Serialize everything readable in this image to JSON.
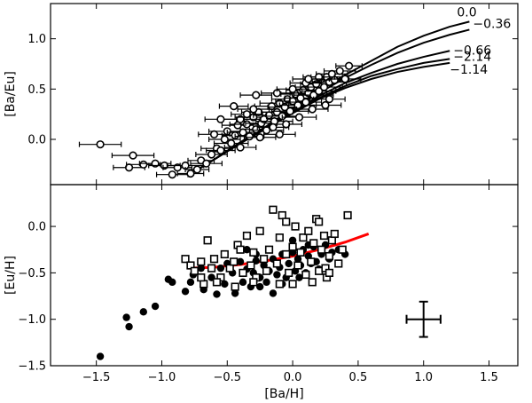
{
  "chart_data": [
    {
      "type": "scatter",
      "panel": "top",
      "xlabel": "",
      "ylabel": "[Ba/Eu]",
      "xlim": [
        -1.85,
        1.72
      ],
      "ylim": [
        -0.45,
        1.35
      ],
      "xticks": [
        -1.5,
        -1.0,
        -0.5,
        0.0,
        0.5,
        1.0,
        1.5
      ],
      "yticks": [
        0.0,
        0.5,
        1.0
      ],
      "ytick_labels": [
        "0.0",
        "0.5",
        "1.0"
      ],
      "series": [
        {
          "name": "stars",
          "marker": "open-circle",
          "points": [
            [
              -1.47,
              -0.05,
              0.16
            ],
            [
              -1.25,
              -0.28,
              0.12
            ],
            [
              -1.22,
              -0.16,
              0.16
            ],
            [
              -1.14,
              -0.25,
              0.13
            ],
            [
              -1.05,
              -0.24,
              0.12
            ],
            [
              -0.98,
              -0.26,
              0.12
            ],
            [
              -0.92,
              -0.35,
              0.12
            ],
            [
              -0.88,
              -0.28,
              0.11
            ],
            [
              -0.82,
              -0.26,
              0.14
            ],
            [
              -0.78,
              -0.34,
              0.1
            ],
            [
              -0.73,
              -0.3,
              0.09
            ],
            [
              -0.7,
              -0.21,
              0.1
            ],
            [
              -0.66,
              -0.24,
              0.12
            ],
            [
              -0.62,
              -0.15,
              0.12
            ],
            [
              -0.58,
              -0.09,
              0.12
            ],
            [
              -0.55,
              -0.11,
              0.11
            ],
            [
              -0.52,
              0.0,
              0.12
            ],
            [
              -0.5,
              0.08,
              0.14
            ],
            [
              -0.47,
              -0.04,
              0.13
            ],
            [
              -0.44,
              0.04,
              0.1
            ],
            [
              -0.42,
              0.14,
              0.12
            ],
            [
              -0.4,
              0.2,
              0.15
            ],
            [
              -0.38,
              0.07,
              0.12
            ],
            [
              -0.35,
              0.15,
              0.13
            ],
            [
              -0.33,
              0.03,
              0.11
            ],
            [
              -0.3,
              0.22,
              0.14
            ],
            [
              -0.28,
              0.1,
              0.12
            ],
            [
              -0.26,
              0.27,
              0.13
            ],
            [
              -0.24,
              0.16,
              0.12
            ],
            [
              -0.22,
              0.2,
              0.15
            ],
            [
              -0.2,
              0.09,
              0.13
            ],
            [
              -0.18,
              0.24,
              0.12
            ],
            [
              -0.16,
              0.33,
              0.13
            ],
            [
              -0.14,
              0.18,
              0.14
            ],
            [
              -0.12,
              0.27,
              0.12
            ],
            [
              -0.1,
              0.36,
              0.15
            ],
            [
              -0.08,
              0.23,
              0.12
            ],
            [
              -0.06,
              0.32,
              0.13
            ],
            [
              -0.04,
              0.4,
              0.12
            ],
            [
              -0.02,
              0.28,
              0.14
            ],
            [
              0.0,
              0.38,
              0.13
            ],
            [
              0.02,
              0.45,
              0.11
            ],
            [
              0.04,
              0.34,
              0.14
            ],
            [
              0.06,
              0.41,
              0.12
            ],
            [
              0.08,
              0.49,
              0.13
            ],
            [
              0.1,
              0.37,
              0.12
            ],
            [
              0.12,
              0.46,
              0.14
            ],
            [
              0.14,
              0.52,
              0.12
            ],
            [
              0.16,
              0.44,
              0.15
            ],
            [
              0.18,
              0.55,
              0.12
            ],
            [
              0.2,
              0.48,
              0.13
            ],
            [
              0.22,
              0.6,
              0.12
            ],
            [
              0.24,
              0.52,
              0.14
            ],
            [
              0.26,
              0.62,
              0.12
            ],
            [
              0.28,
              0.57,
              0.13
            ],
            [
              0.3,
              0.65,
              0.12
            ],
            [
              0.32,
              0.59,
              0.11
            ],
            [
              0.36,
              0.68,
              0.12
            ],
            [
              0.4,
              0.6,
              0.12
            ],
            [
              0.43,
              0.73,
              0.1
            ],
            [
              -0.28,
              0.44,
              0.12
            ],
            [
              -0.12,
              0.46,
              0.12
            ],
            [
              0.1,
              0.56,
              0.12
            ],
            [
              0.2,
              0.62,
              0.12
            ],
            [
              -0.35,
              0.25,
              0.12
            ],
            [
              -0.45,
              0.33,
              0.11
            ],
            [
              -0.05,
              0.15,
              0.12
            ],
            [
              0.05,
              0.22,
              0.13
            ],
            [
              0.15,
              0.3,
              0.12
            ],
            [
              0.28,
              0.4,
              0.12
            ],
            [
              -0.1,
              0.05,
              0.12
            ],
            [
              -0.55,
              0.2,
              0.12
            ],
            [
              -0.25,
              0.02,
              0.12
            ],
            [
              -0.15,
              0.12,
              0.12
            ],
            [
              0.0,
              0.5,
              0.12
            ],
            [
              0.25,
              0.34,
              0.12
            ],
            [
              -0.4,
              -0.08,
              0.12
            ],
            [
              -0.3,
              0.3,
              0.12
            ],
            [
              0.12,
              0.6,
              0.12
            ],
            [
              -0.6,
              0.05,
              0.12
            ]
          ]
        }
      ],
      "curves": [
        {
          "label": "0.0",
          "x": [
            -0.8,
            -0.6,
            -0.4,
            -0.2,
            0.0,
            0.2,
            0.4,
            0.6,
            0.8,
            1.0,
            1.2,
            1.35
          ],
          "y": [
            -0.36,
            -0.2,
            -0.03,
            0.13,
            0.31,
            0.48,
            0.64,
            0.78,
            0.92,
            1.03,
            1.12,
            1.17
          ]
        },
        {
          "label": "−0.36",
          "x": [
            -0.8,
            -0.6,
            -0.4,
            -0.2,
            0.0,
            0.2,
            0.4,
            0.6,
            0.8,
            1.0,
            1.2,
            1.35
          ],
          "y": [
            -0.36,
            -0.2,
            -0.03,
            0.13,
            0.3,
            0.46,
            0.61,
            0.74,
            0.86,
            0.96,
            1.04,
            1.09
          ]
        },
        {
          "label": "−0.66",
          "x": [
            -0.8,
            -0.6,
            -0.4,
            -0.2,
            0.0,
            0.2,
            0.4,
            0.6,
            0.8,
            1.0,
            1.2
          ],
          "y": [
            -0.36,
            -0.2,
            -0.03,
            0.12,
            0.28,
            0.43,
            0.56,
            0.66,
            0.75,
            0.82,
            0.88
          ]
        },
        {
          "label": "−2.14",
          "x": [
            -0.8,
            -0.6,
            -0.4,
            -0.2,
            0.0,
            0.2,
            0.4,
            0.6,
            0.8,
            1.0,
            1.2
          ],
          "y": [
            -0.36,
            -0.2,
            -0.04,
            0.11,
            0.27,
            0.41,
            0.53,
            0.63,
            0.7,
            0.76,
            0.8
          ]
        },
        {
          "label": "−1.14",
          "x": [
            -0.8,
            -0.6,
            -0.4,
            -0.2,
            0.0,
            0.2,
            0.4,
            0.6,
            0.8,
            1.0,
            1.2
          ],
          "y": [
            -0.36,
            -0.2,
            -0.04,
            0.11,
            0.26,
            0.4,
            0.51,
            0.6,
            0.67,
            0.72,
            0.76
          ]
        }
      ]
    },
    {
      "type": "scatter",
      "panel": "bottom",
      "xlabel": "[Ba/H]",
      "ylabel": "[Eu/H]",
      "xlim": [
        -1.85,
        1.72
      ],
      "ylim": [
        -1.5,
        0.45
      ],
      "xticks": [
        -1.5,
        -1.0,
        -0.5,
        0.0,
        0.5,
        1.0,
        1.5
      ],
      "xtick_labels": [
        "−1.5",
        "−1.0",
        "−0.5",
        "0.0",
        "0.5",
        "1.0",
        "1.5"
      ],
      "yticks": [
        -1.5,
        -1.0,
        -0.5,
        0.0
      ],
      "ytick_labels": [
        "−1.5",
        "−1.0",
        "−0.5",
        "0.0"
      ],
      "series": [
        {
          "name": "filled",
          "marker": "filled-circle",
          "points": [
            [
              -1.47,
              -1.4
            ],
            [
              -1.27,
              -0.98
            ],
            [
              -1.25,
              -1.08
            ],
            [
              -1.14,
              -0.92
            ],
            [
              -1.05,
              -0.86
            ],
            [
              -0.95,
              -0.57
            ],
            [
              -0.92,
              -0.6
            ],
            [
              -0.82,
              -0.7
            ],
            [
              -0.78,
              -0.6
            ],
            [
              -0.76,
              -0.52
            ],
            [
              -0.7,
              -0.45
            ],
            [
              -0.68,
              -0.68
            ],
            [
              -0.62,
              -0.55
            ],
            [
              -0.58,
              -0.73
            ],
            [
              -0.55,
              -0.45
            ],
            [
              -0.52,
              -0.62
            ],
            [
              -0.5,
              -0.4
            ],
            [
              -0.46,
              -0.5
            ],
            [
              -0.44,
              -0.72
            ],
            [
              -0.4,
              -0.38
            ],
            [
              -0.38,
              -0.6
            ],
            [
              -0.35,
              -0.46
            ],
            [
              -0.32,
              -0.65
            ],
            [
              -0.3,
              -0.5
            ],
            [
              -0.28,
              -0.37
            ],
            [
              -0.25,
              -0.55
            ],
            [
              -0.22,
              -0.42
            ],
            [
              -0.2,
              -0.6
            ],
            [
              -0.18,
              -0.48
            ],
            [
              -0.15,
              -0.35
            ],
            [
              -0.12,
              -0.52
            ],
            [
              -0.1,
              -0.44
            ],
            [
              -0.08,
              -0.3
            ],
            [
              -0.05,
              -0.55
            ],
            [
              -0.03,
              -0.4
            ],
            [
              0.0,
              -0.28
            ],
            [
              0.02,
              -0.48
            ],
            [
              0.04,
              -0.35
            ],
            [
              0.06,
              -0.42
            ],
            [
              0.08,
              -0.25
            ],
            [
              0.1,
              -0.5
            ],
            [
              0.12,
              -0.32
            ],
            [
              0.14,
              -0.4
            ],
            [
              0.16,
              -0.22
            ],
            [
              0.18,
              -0.38
            ],
            [
              0.2,
              -0.46
            ],
            [
              0.22,
              -0.3
            ],
            [
              0.25,
              -0.2
            ],
            [
              0.28,
              -0.35
            ],
            [
              0.3,
              -0.28
            ],
            [
              0.35,
              -0.25
            ],
            [
              0.4,
              -0.3
            ],
            [
              -0.15,
              -0.72
            ],
            [
              -0.28,
              -0.3
            ],
            [
              0.05,
              -0.55
            ],
            [
              -0.08,
              -0.62
            ],
            [
              0.12,
              -0.2
            ],
            [
              -0.35,
              -0.25
            ],
            [
              0.0,
              -0.15
            ],
            [
              -0.25,
              -0.65
            ]
          ]
        },
        {
          "name": "open",
          "marker": "open-square",
          "points": [
            [
              -0.82,
              -0.35
            ],
            [
              -0.78,
              -0.42
            ],
            [
              -0.75,
              -0.48
            ],
            [
              -0.7,
              -0.38
            ],
            [
              -0.68,
              -0.62
            ],
            [
              -0.62,
              -0.45
            ],
            [
              -0.6,
              -0.35
            ],
            [
              -0.55,
              -0.55
            ],
            [
              -0.52,
              -0.3
            ],
            [
              -0.48,
              -0.45
            ],
            [
              -0.45,
              -0.38
            ],
            [
              -0.42,
              -0.2
            ],
            [
              -0.38,
              -0.5
            ],
            [
              -0.35,
              -0.1
            ],
            [
              -0.32,
              -0.42
            ],
            [
              -0.3,
              -0.28
            ],
            [
              -0.28,
              -0.55
            ],
            [
              -0.25,
              -0.05
            ],
            [
              -0.22,
              -0.35
            ],
            [
              -0.2,
              -0.48
            ],
            [
              -0.18,
              -0.25
            ],
            [
              -0.15,
              0.18
            ],
            [
              -0.12,
              -0.4
            ],
            [
              -0.1,
              -0.12
            ],
            [
              -0.08,
              0.12
            ],
            [
              -0.05,
              -0.3
            ],
            [
              -0.03,
              -0.5
            ],
            [
              0.0,
              -0.22
            ],
            [
              0.02,
              0.0
            ],
            [
              0.04,
              -0.42
            ],
            [
              0.06,
              -0.28
            ],
            [
              0.08,
              -0.12
            ],
            [
              0.1,
              -0.52
            ],
            [
              0.12,
              -0.05
            ],
            [
              0.14,
              -0.38
            ],
            [
              0.16,
              -0.18
            ],
            [
              0.18,
              0.08
            ],
            [
              0.2,
              -0.48
            ],
            [
              0.22,
              -0.25
            ],
            [
              0.24,
              -0.1
            ],
            [
              0.26,
              -0.55
            ],
            [
              0.28,
              -0.32
            ],
            [
              0.3,
              -0.15
            ],
            [
              0.35,
              -0.4
            ],
            [
              0.38,
              -0.25
            ],
            [
              0.42,
              0.12
            ],
            [
              -0.58,
              -0.6
            ],
            [
              -0.44,
              -0.65
            ],
            [
              -0.05,
              0.05
            ],
            [
              0.2,
              0.05
            ],
            [
              -0.65,
              -0.15
            ],
            [
              -0.4,
              -0.25
            ],
            [
              0.0,
              -0.62
            ],
            [
              0.25,
              -0.45
            ],
            [
              0.32,
              -0.08
            ],
            [
              -0.7,
              -0.55
            ],
            [
              -0.1,
              -0.62
            ],
            [
              0.15,
              -0.6
            ],
            [
              0.28,
              -0.5
            ],
            [
              -0.3,
              -0.6
            ]
          ]
        }
      ],
      "fit_line": {
        "color": "#ff0000",
        "x": [
          -0.8,
          -0.6,
          -0.4,
          -0.2,
          0.0,
          0.2,
          0.4,
          0.58
        ],
        "y": [
          -0.45,
          -0.44,
          -0.41,
          -0.37,
          -0.32,
          -0.25,
          -0.17,
          -0.08
        ]
      },
      "error_bar": {
        "x": 1.0,
        "y": -1.0,
        "xerr": 0.13,
        "yerr": 0.19
      }
    }
  ]
}
